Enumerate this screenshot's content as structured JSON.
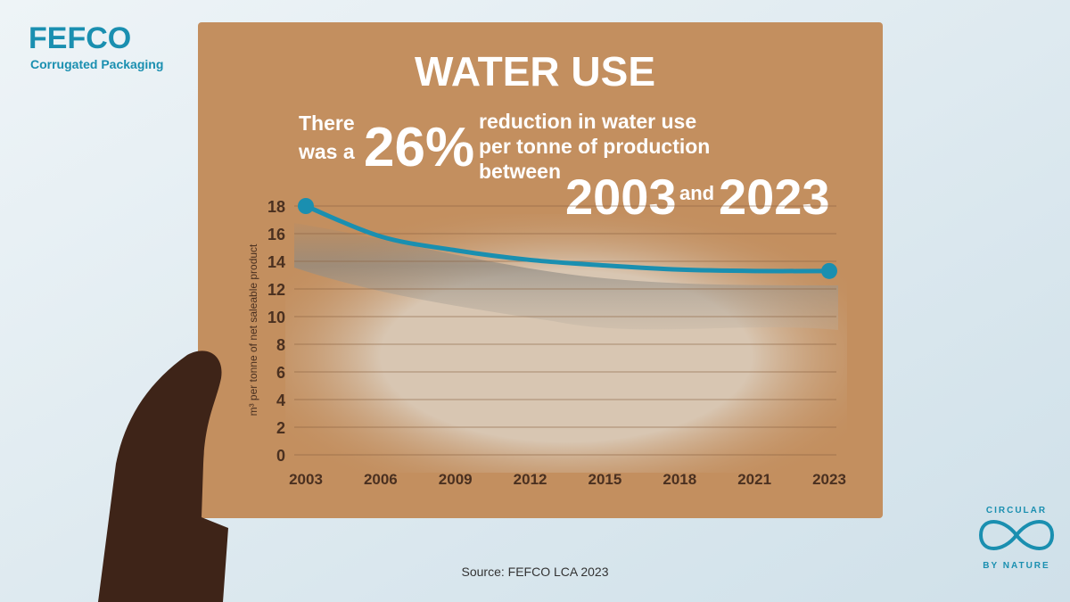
{
  "logo": {
    "name": "FEFCO",
    "tagline": "Corrugated Packaging"
  },
  "badge": {
    "top": "CIRCULAR",
    "bottom": "BY NATURE"
  },
  "headline": {
    "before": [
      "There",
      "was a"
    ],
    "figure": "26%",
    "after": [
      "reduction in water use",
      "per tonne of production",
      "between"
    ],
    "start": "2003",
    "joiner": "and",
    "end": "2023"
  },
  "chart_data": {
    "type": "line",
    "title": "WATER USE",
    "y_label": "m³ per tonne of net saleable product",
    "categories": [
      "2003",
      "2006",
      "2009",
      "2012",
      "2015",
      "2018",
      "2021",
      "2023"
    ],
    "values": [
      18,
      15.8,
      14.8,
      14.1,
      13.7,
      13.4,
      13.3,
      13.3
    ],
    "color": "#1a8fb0",
    "ylim": [
      0,
      18
    ],
    "yticks": [
      0,
      2,
      4,
      6,
      8,
      10,
      12,
      14,
      16,
      18
    ],
    "grid": true,
    "source": "Source: FEFCO LCA 2023"
  }
}
